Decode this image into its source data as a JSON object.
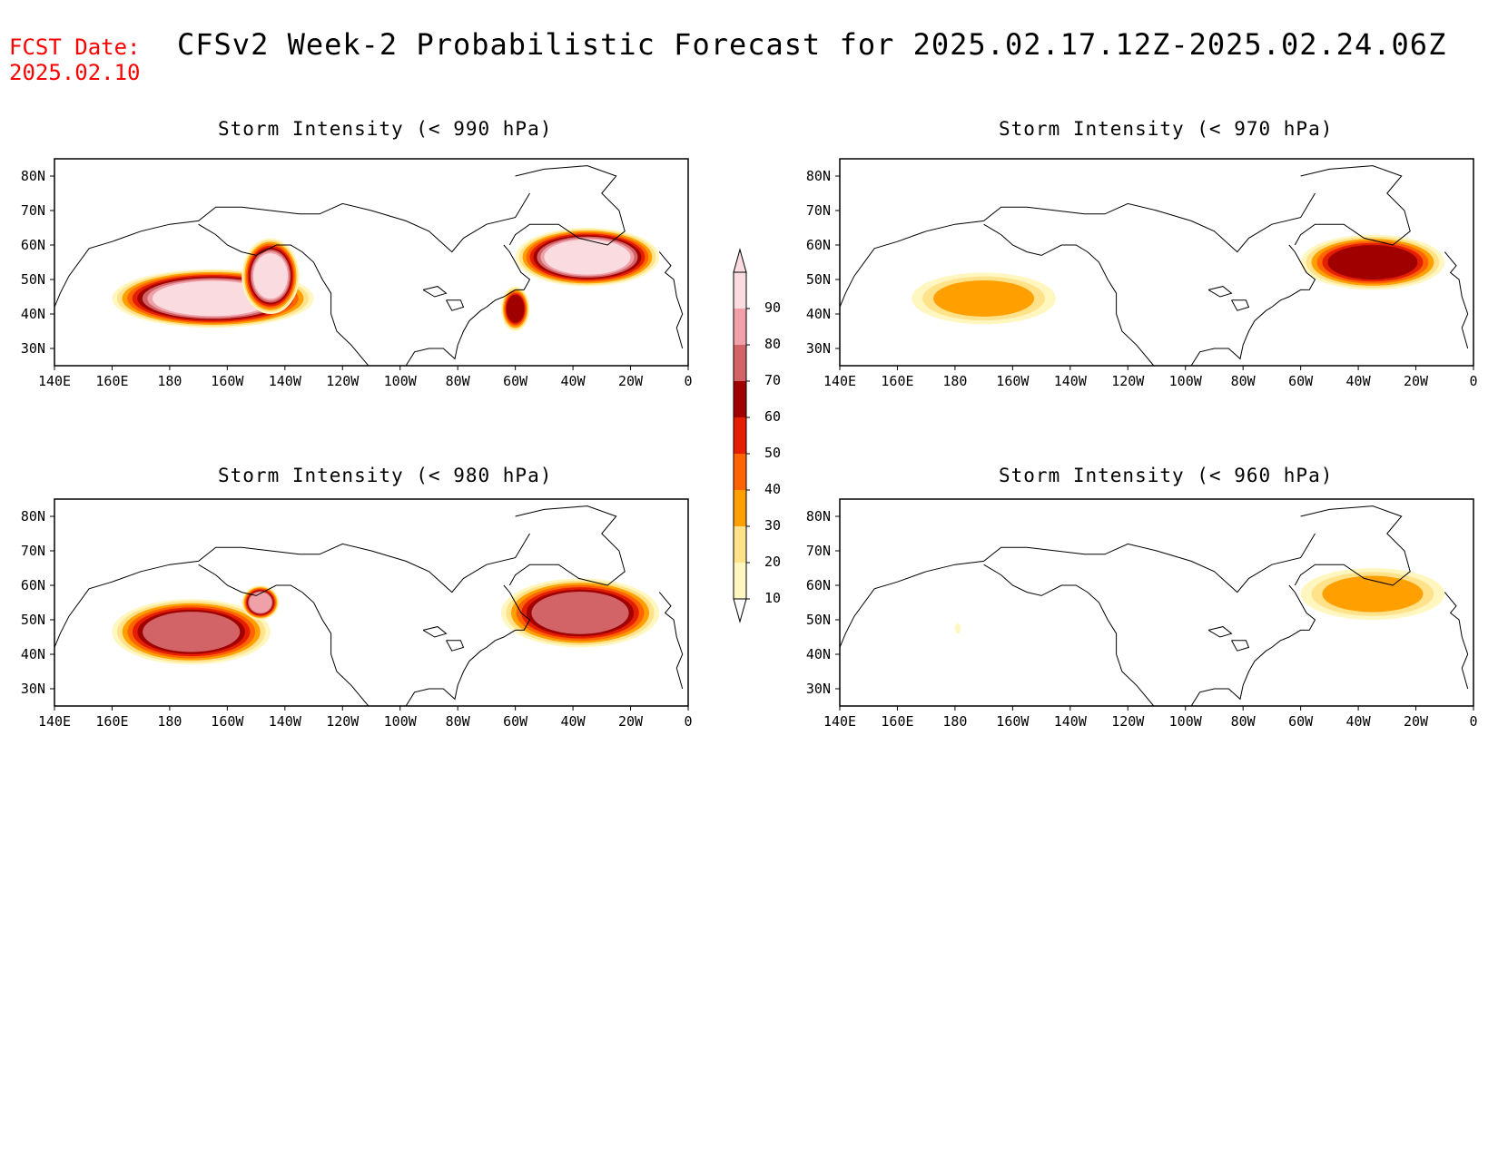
{
  "header": {
    "fcst_label": "FCST Date:",
    "fcst_date": "2025.02.10",
    "title": "CFSv2 Week-2 Probabilistic Forecast for 2025.02.17.12Z-2025.02.24.06Z"
  },
  "panels": [
    {
      "id": "p990",
      "title": "Storm Intensity (< 990 hPa)"
    },
    {
      "id": "p970",
      "title": "Storm Intensity (< 970 hPa)"
    },
    {
      "id": "p980",
      "title": "Storm Intensity (< 980 hPa)"
    },
    {
      "id": "p960",
      "title": "Storm Intensity (< 960 hPa)"
    }
  ],
  "axes": {
    "lat_labels": [
      "80N",
      "70N",
      "60N",
      "50N",
      "40N",
      "30N"
    ],
    "lat_values": [
      80,
      70,
      60,
      50,
      40,
      30
    ],
    "lon_labels": [
      "140E",
      "160E",
      "180",
      "160W",
      "140W",
      "120W",
      "100W",
      "80W",
      "60W",
      "40W",
      "20W",
      "0"
    ],
    "lon_values": [
      140,
      160,
      180,
      200,
      220,
      240,
      260,
      280,
      300,
      320,
      340,
      360
    ],
    "lon_range": [
      140,
      360
    ],
    "lat_range": [
      25,
      85
    ]
  },
  "colorbar": {
    "labels": [
      "10",
      "20",
      "30",
      "40",
      "50",
      "60",
      "70",
      "80",
      "90"
    ],
    "colors": [
      "#fff6c0",
      "#ffe28a",
      "#ffa000",
      "#ff6400",
      "#e61e00",
      "#a00000",
      "#d26468",
      "#f0a0a8",
      "#fadce0"
    ]
  },
  "chart_data": {
    "type": "heatmap",
    "units": "probability (%)",
    "regions": {
      "p990": [
        {
          "lon": [
            160,
            230
          ],
          "lat": [
            36,
            53
          ],
          "p": 90
        },
        {
          "lon": [
            205,
            225
          ],
          "lat": [
            40,
            62
          ],
          "p": 90
        },
        {
          "lon": [
            300,
            350
          ],
          "lat": [
            48,
            65
          ],
          "p": 90
        },
        {
          "lon": [
            295,
            305
          ],
          "lat": [
            35,
            48
          ],
          "p": 60
        }
      ],
      "p980": [
        {
          "lon": [
            160,
            215
          ],
          "lat": [
            37,
            56
          ],
          "p": 70
        },
        {
          "lon": [
            205,
            218
          ],
          "lat": [
            50,
            60
          ],
          "p": 80
        },
        {
          "lon": [
            295,
            350
          ],
          "lat": [
            42,
            62
          ],
          "p": 70
        }
      ],
      "p970": [
        {
          "lon": [
            165,
            215
          ],
          "lat": [
            37,
            52
          ],
          "p": 30
        },
        {
          "lon": [
            300,
            350
          ],
          "lat": [
            47,
            63
          ],
          "p": 60
        }
      ],
      "p960": [
        {
          "lon": [
            300,
            350
          ],
          "lat": [
            50,
            65
          ],
          "p": 30
        },
        {
          "lon": [
            180,
            182
          ],
          "lat": [
            46,
            49
          ],
          "p": 10
        }
      ]
    }
  }
}
